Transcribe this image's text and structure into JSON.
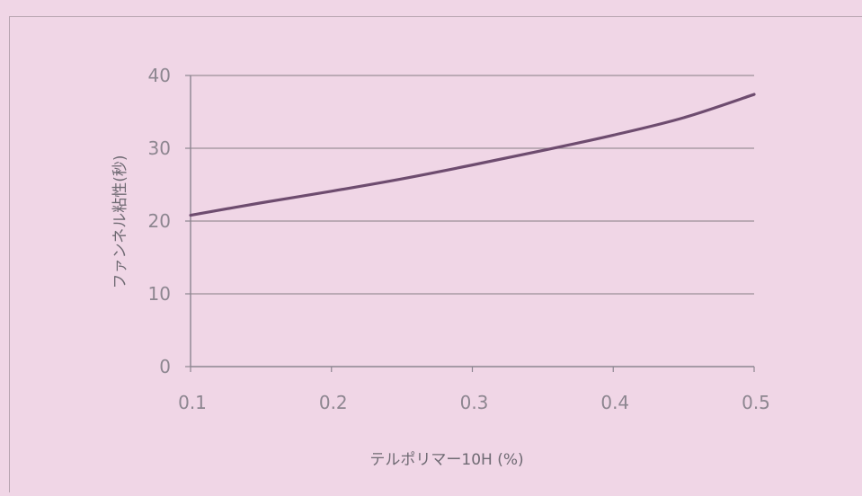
{
  "chart_data": {
    "type": "line",
    "title": "",
    "xlabel": "テルポリマー10H (%)",
    "ylabel": "ファンネル粘性(秒)",
    "x_ticks": [
      "0.1",
      "0.2",
      "0.3",
      "0.4",
      "0.5"
    ],
    "y_ticks": [
      "0",
      "10",
      "20",
      "30",
      "40"
    ],
    "xlim": [
      0.1,
      0.5
    ],
    "ylim": [
      0,
      40
    ],
    "grid": "horizontal",
    "series": [
      {
        "x": [
          0.1,
          0.15,
          0.2,
          0.25,
          0.3,
          0.35,
          0.4,
          0.45,
          0.5
        ],
        "y": [
          20.8,
          22.5,
          24.1,
          25.8,
          27.7,
          29.7,
          31.8,
          34.2,
          37.4
        ],
        "color": "#6e4c6f"
      }
    ]
  }
}
